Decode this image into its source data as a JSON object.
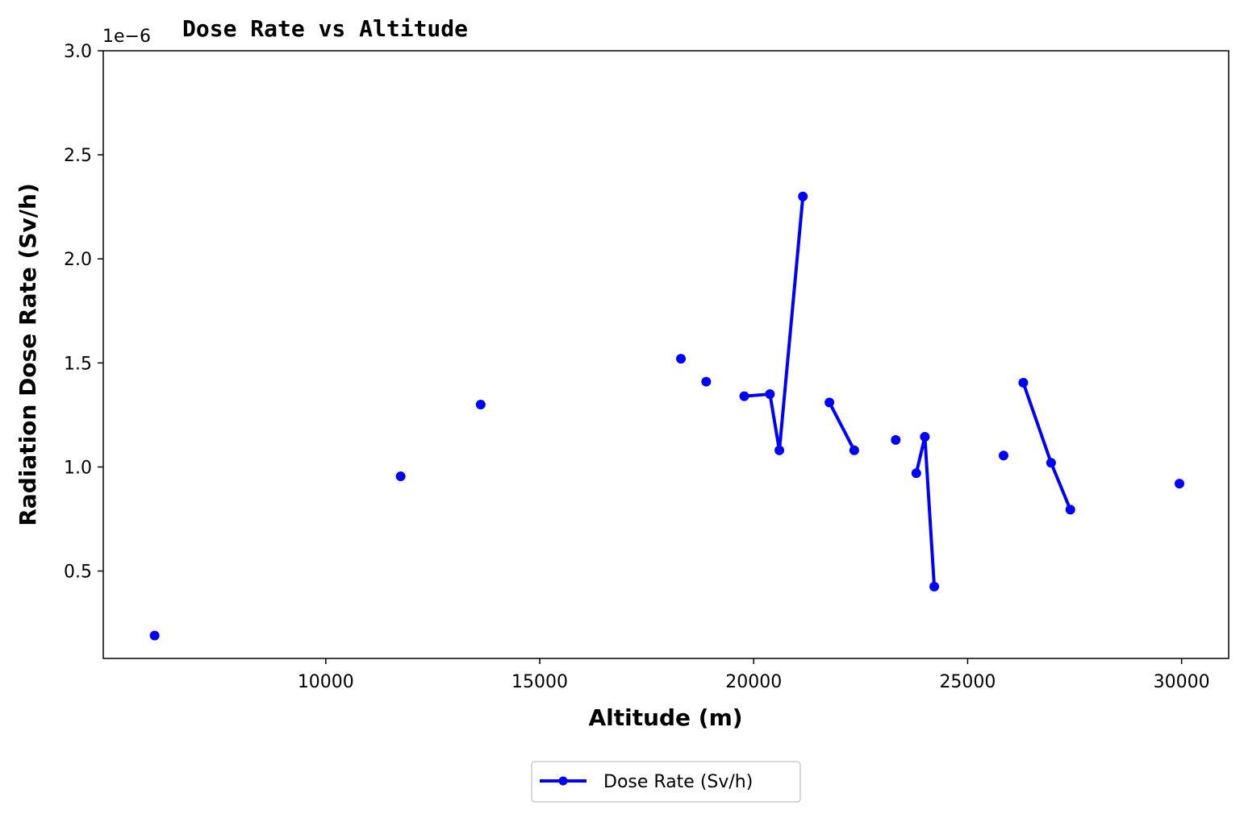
{
  "chart_data": {
    "type": "line",
    "title": "Dose Rate vs Altitude",
    "xlabel": "Altitude (m)",
    "ylabel": "Radiation Dose Rate (Sv/h)",
    "y_offset_text": "1e−6",
    "xlim": [
      4800,
      31100
    ],
    "ylim": [
      0.08,
      3.0
    ],
    "x_ticks": [
      10000,
      15000,
      20000,
      25000,
      30000
    ],
    "x_tick_labels": [
      "10000",
      "15000",
      "20000",
      "25000",
      "30000"
    ],
    "y_ticks": [
      0.5,
      1.0,
      1.5,
      2.0,
      2.5,
      3.0
    ],
    "y_tick_labels": [
      "0.5",
      "1.0",
      "1.5",
      "2.0",
      "2.5",
      "3.0"
    ],
    "grid": false,
    "legend_position": "bottom-center-outside",
    "series": [
      {
        "name": "Dose Rate (Sv/h)",
        "color": "#0000ff",
        "marker": "circle",
        "segments": [
          [
            {
              "x": 6000,
              "y": 0.19
            }
          ],
          [
            {
              "x": 11750,
              "y": 0.955
            }
          ],
          [
            {
              "x": 13620,
              "y": 1.3
            }
          ],
          [
            {
              "x": 18300,
              "y": 1.52
            }
          ],
          [
            {
              "x": 18890,
              "y": 1.41
            }
          ],
          [
            {
              "x": 19780,
              "y": 1.34
            },
            {
              "x": 20380,
              "y": 1.35
            },
            {
              "x": 20600,
              "y": 1.08
            },
            {
              "x": 21150,
              "y": 2.3
            }
          ],
          [
            {
              "x": 21770,
              "y": 1.31
            },
            {
              "x": 22350,
              "y": 1.08
            }
          ],
          [
            {
              "x": 23320,
              "y": 1.13
            }
          ],
          [
            {
              "x": 23800,
              "y": 0.97
            },
            {
              "x": 24000,
              "y": 1.145
            },
            {
              "x": 24220,
              "y": 0.425
            }
          ],
          [
            {
              "x": 25840,
              "y": 1.055
            }
          ],
          [
            {
              "x": 26300,
              "y": 1.405
            },
            {
              "x": 26950,
              "y": 1.02
            },
            {
              "x": 27400,
              "y": 0.795
            }
          ],
          [
            {
              "x": 29950,
              "y": 0.92
            }
          ]
        ]
      }
    ]
  }
}
